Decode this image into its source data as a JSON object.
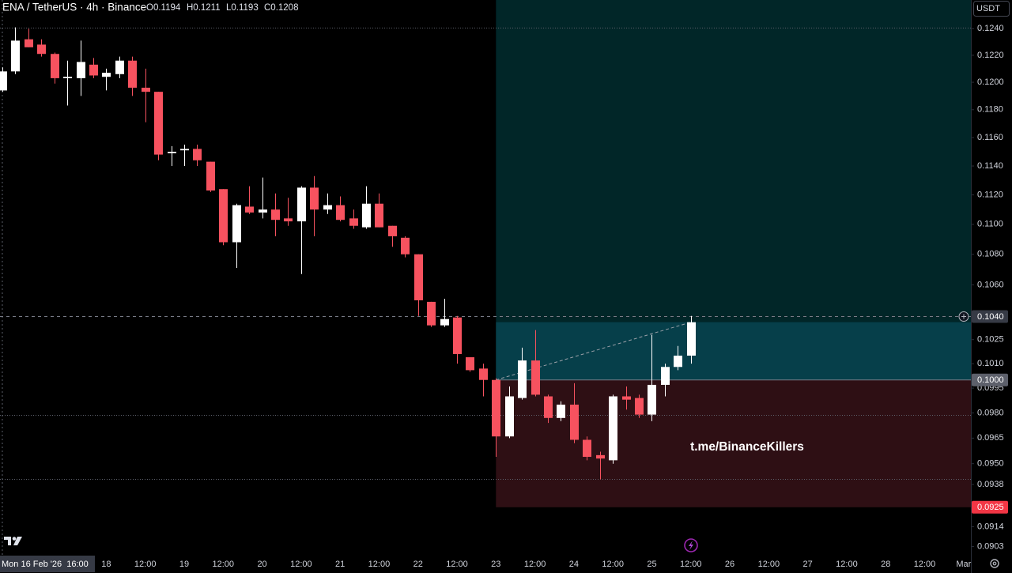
{
  "chart_data": {
    "type": "candlestick",
    "title": "ENA / TetherUS · 4h · Binance",
    "header_values": [
      {
        "value": 0.1194,
        "label": "O0.1194"
      },
      {
        "value": 0.1211,
        "label": "H0.1211"
      },
      {
        "value": 0.1193,
        "label": "L0.1193"
      },
      {
        "value": 0.1208,
        "label": "C0.1208"
      }
    ],
    "currency": "USDT",
    "watermark": "t.me/BinanceKillers",
    "log_scale": true,
    "up_color": "#ffffff",
    "down_color": "#f7525f",
    "open": [
      0.1194,
      0.1208,
      0.1232,
      0.1228,
      0.1221,
      0.1203,
      0.1203,
      0.1213,
      0.1204,
      0.1206,
      0.1216,
      0.1196,
      0.1193,
      0.1149,
      0.1151,
      0.1152,
      0.1143,
      0.1124,
      0.1088,
      0.1112,
      0.1108,
      0.111,
      0.1104,
      0.1102,
      0.1125,
      0.111,
      0.1113,
      0.1104,
      0.1098,
      0.1114,
      0.1099,
      0.1091,
      0.108,
      0.1049,
      0.1034,
      0.1039,
      0.1014,
      0.1007,
      0.1,
      0.0966,
      0.0989,
      0.1012,
      0.099,
      0.0977,
      0.0985,
      0.0964,
      0.0955,
      0.0952,
      0.099,
      0.0989,
      0.0979,
      0.0997,
      0.1008,
      0.1015
    ],
    "high": [
      0.1211,
      0.1241,
      0.124,
      0.1232,
      0.1222,
      0.1216,
      0.1231,
      0.1218,
      0.121,
      0.1219,
      0.1219,
      0.121,
      0.1193,
      0.1154,
      0.1155,
      0.1155,
      0.1143,
      0.1124,
      0.1114,
      0.1126,
      0.1132,
      0.1121,
      0.1118,
      0.1126,
      0.1133,
      0.1121,
      0.1119,
      0.111,
      0.1126,
      0.1121,
      0.1099,
      0.1092,
      0.108,
      0.1049,
      0.1051,
      0.104,
      0.1014,
      0.101,
      0.1001,
      0.0996,
      0.102,
      0.1031,
      0.0991,
      0.0987,
      0.0998,
      0.0966,
      0.0957,
      0.0991,
      0.0996,
      0.0991,
      0.1028,
      0.101,
      0.1021,
      0.104
    ],
    "low": [
      0.1193,
      0.1206,
      0.1226,
      0.1219,
      0.1199,
      0.1183,
      0.119,
      0.1203,
      0.1194,
      0.1203,
      0.119,
      0.1171,
      0.1144,
      0.114,
      0.114,
      0.114,
      0.1122,
      0.1086,
      0.1071,
      0.1107,
      0.1104,
      0.1092,
      0.1099,
      0.1067,
      0.1092,
      0.1107,
      0.1102,
      0.1097,
      0.1097,
      0.1098,
      0.1085,
      0.1078,
      0.104,
      0.1033,
      0.1033,
      0.101,
      0.1005,
      0.099,
      0.0954,
      0.0965,
      0.0988,
      0.099,
      0.0974,
      0.0975,
      0.0962,
      0.0952,
      0.0941,
      0.095,
      0.0982,
      0.0977,
      0.0975,
      0.099,
      0.1006,
      0.101
    ],
    "close": [
      0.1208,
      0.1231,
      0.1226,
      0.1221,
      0.1203,
      0.1204,
      0.1215,
      0.1205,
      0.1207,
      0.1216,
      0.1196,
      0.1193,
      0.1148,
      0.115,
      0.1152,
      0.1144,
      0.1123,
      0.1088,
      0.1113,
      0.1108,
      0.111,
      0.1103,
      0.1102,
      0.1125,
      0.111,
      0.1113,
      0.1103,
      0.1099,
      0.1114,
      0.1098,
      0.1092,
      0.108,
      0.105,
      0.1034,
      0.1038,
      0.1016,
      0.1006,
      0.1,
      0.0966,
      0.099,
      0.1012,
      0.0991,
      0.0977,
      0.0985,
      0.0964,
      0.0954,
      0.0953,
      0.099,
      0.0988,
      0.0979,
      0.0997,
      0.1008,
      0.1015,
      0.1036
    ],
    "xlim": [
      -0.18,
      74.56
    ],
    "ylim": [
      0.0898,
      0.1262
    ],
    "yticks": [
      {
        "value": 0.124,
        "label": "0.1240"
      },
      {
        "value": 0.122,
        "label": "0.1220"
      },
      {
        "value": 0.12,
        "label": "0.1200"
      },
      {
        "value": 0.118,
        "label": "0.1180"
      },
      {
        "value": 0.116,
        "label": "0.1160"
      },
      {
        "value": 0.114,
        "label": "0.1140"
      },
      {
        "value": 0.112,
        "label": "0.1120"
      },
      {
        "value": 0.11,
        "label": "0.1100"
      },
      {
        "value": 0.108,
        "label": "0.1080"
      },
      {
        "value": 0.106,
        "label": "0.1060"
      },
      {
        "value": 0.1025,
        "label": "0.1025"
      },
      {
        "value": 0.101,
        "label": "0.1010"
      },
      {
        "value": 0.0995,
        "label": "0.0995"
      },
      {
        "value": 0.098,
        "label": "0.0980"
      },
      {
        "value": 0.0965,
        "label": "0.0965"
      },
      {
        "value": 0.095,
        "label": "0.0950"
      },
      {
        "value": 0.0938,
        "label": "0.0938"
      },
      {
        "value": 0.0914,
        "label": "0.0914"
      },
      {
        "value": 0.0903,
        "label": "0.0903"
      }
    ],
    "xticks": [
      {
        "value": 8,
        "label": "18"
      },
      {
        "value": 11,
        "label": "12:00"
      },
      {
        "value": 14,
        "label": "19"
      },
      {
        "value": 17,
        "label": "12:00"
      },
      {
        "value": 20,
        "label": "20"
      },
      {
        "value": 23,
        "label": "12:00"
      },
      {
        "value": 26,
        "label": "21"
      },
      {
        "value": 29,
        "label": "12:00"
      },
      {
        "value": 32,
        "label": "22"
      },
      {
        "value": 35,
        "label": "12:00"
      },
      {
        "value": 38,
        "label": "23"
      },
      {
        "value": 41,
        "label": "12:00"
      },
      {
        "value": 44,
        "label": "24"
      },
      {
        "value": 47,
        "label": "12:00"
      },
      {
        "value": 50,
        "label": "25"
      },
      {
        "value": 53,
        "label": "12:00"
      },
      {
        "value": 56,
        "label": "26"
      },
      {
        "value": 59,
        "label": "12:00"
      },
      {
        "value": 62,
        "label": "27"
      },
      {
        "value": 65,
        "label": "12:00"
      },
      {
        "value": 68,
        "label": "28"
      },
      {
        "value": 71,
        "label": "12:00"
      },
      {
        "value": 74,
        "label": "Mar"
      }
    ],
    "horizontal_lines": [
      0.1241,
      0.0979,
      0.0941
    ],
    "crosshair": {
      "x": {
        "value": 0,
        "label": "Mon 16 Feb '26  16:00"
      },
      "y": {
        "value": 0.104,
        "label": "0.1040"
      }
    },
    "position": {
      "start": 38,
      "entry": {
        "value": 0.1,
        "label": "0.1000"
      },
      "stop": {
        "value": 0.0925,
        "label": "0.0925"
      }
    }
  }
}
